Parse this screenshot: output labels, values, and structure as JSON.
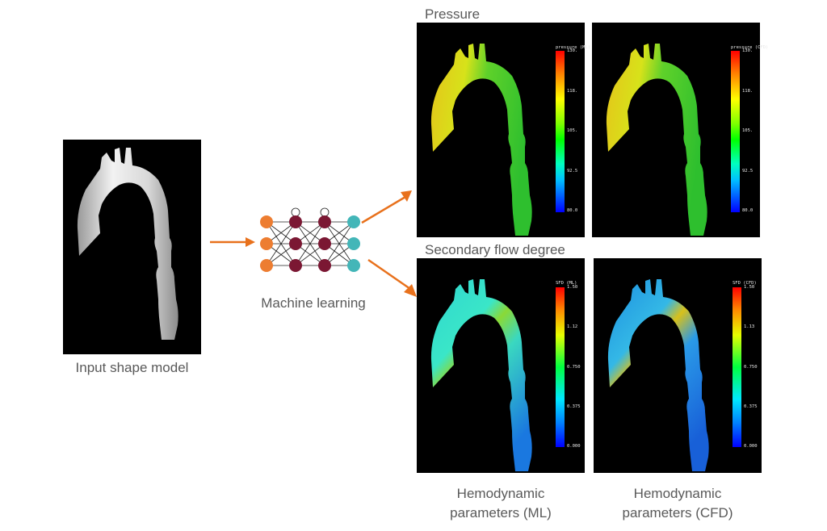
{
  "input": {
    "label": "Input shape model"
  },
  "network": {
    "label": "Machine learning"
  },
  "sections": {
    "pressure": "Pressure",
    "sfd": "Secondary flow degree"
  },
  "columns": {
    "ml": "Hemodynamic\nparameters (ML)",
    "cfd": "Hemodynamic\nparameters (CFD)"
  },
  "colorbars": {
    "pressure_ml": {
      "title": "pressure (ML)",
      "ticks": [
        "130.",
        "118.",
        "105.",
        "92.5",
        "80.0"
      ]
    },
    "pressure_cfd": {
      "title": "pressure (CFD)",
      "ticks": [
        "130.",
        "118.",
        "105.",
        "92.5",
        "80.0"
      ]
    },
    "sfd_ml": {
      "title": "SFD (ML)",
      "ticks": [
        "1.50",
        "1.12",
        "0.750",
        "0.375",
        "0.000"
      ]
    },
    "sfd_cfd": {
      "title": "SFD (CFD)",
      "ticks": [
        "1.50",
        "1.13",
        "0.750",
        "0.375",
        "0.000"
      ]
    }
  },
  "colors": {
    "arrow": "#e8711c",
    "input_node": "#ed7d31",
    "hidden_node": "#7b1733",
    "output_node": "#43b6b8"
  }
}
